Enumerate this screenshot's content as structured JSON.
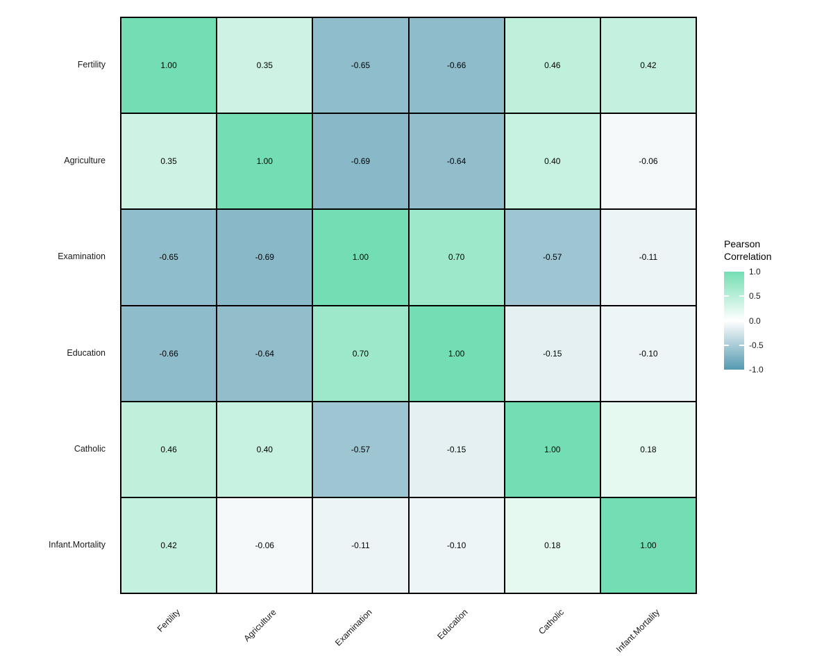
{
  "figure": {
    "background": "#FFFFFF"
  },
  "chart_data": {
    "type": "heatmap",
    "title": "",
    "variables": [
      "Fertility",
      "Agriculture",
      "Examination",
      "Education",
      "Catholic",
      "Infant.Mortality"
    ],
    "matrix": [
      [
        1.0,
        0.35,
        -0.65,
        -0.66,
        0.46,
        0.42
      ],
      [
        0.35,
        1.0,
        -0.69,
        -0.64,
        0.4,
        -0.06
      ],
      [
        -0.65,
        -0.69,
        1.0,
        0.7,
        -0.57,
        -0.11
      ],
      [
        -0.66,
        -0.64,
        0.7,
        1.0,
        -0.15,
        -0.1
      ],
      [
        0.46,
        0.4,
        -0.57,
        -0.15,
        1.0,
        0.18
      ],
      [
        0.42,
        -0.06,
        -0.11,
        -0.1,
        0.18,
        1.0
      ]
    ],
    "value_decimals": 2,
    "legend": {
      "title": "Pearson\nCorrelation",
      "position": "right",
      "range": [
        -1,
        1
      ],
      "ticks": [
        {
          "label": "1.0",
          "value": 1.0
        },
        {
          "label": "0.5",
          "value": 0.5
        },
        {
          "label": "0.0",
          "value": 0.0
        },
        {
          "label": "-0.5",
          "value": -0.5
        },
        {
          "label": "-1.0",
          "value": -1.0
        }
      ]
    },
    "colors": {
      "high": "#73DEB3",
      "mid": "#FFFFFF",
      "low": "#5499B0",
      "cell_border": "#000000",
      "value_text": "#000000",
      "axis_text": "#1A1A1A"
    },
    "grid_on": false
  }
}
